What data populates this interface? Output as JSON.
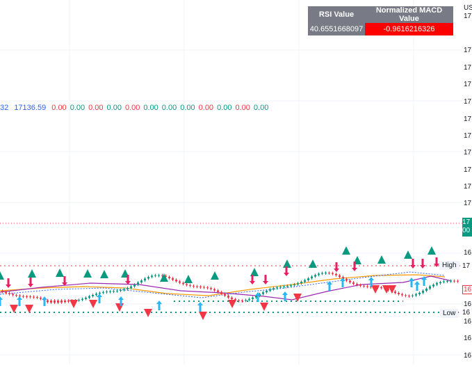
{
  "axis": {
    "currency": "US",
    "ticks": [
      "17",
      "17",
      "17",
      "17",
      "17",
      "17",
      "17",
      "17",
      "17",
      "17",
      "17",
      "16",
      "16",
      "16",
      "16",
      "16"
    ]
  },
  "price_badge": {
    "line1": "17",
    "line2": "00"
  },
  "indicator_row": {
    "first": "32",
    "second": "17136.59",
    "values": [
      "0.00",
      "0.00",
      "0.00",
      "0.00",
      "0.00",
      "0.00",
      "0.00",
      "0.00",
      "0.00",
      "0.00",
      "0.00",
      "0.00"
    ],
    "colors": [
      "red",
      "green",
      "red",
      "green",
      "red",
      "green",
      "green",
      "green",
      "red",
      "green",
      "red",
      "green"
    ]
  },
  "info_table": {
    "headers": [
      "RSI Value",
      "Normalized MACD Value"
    ],
    "rsi": "40.6551668097",
    "macd": "-0.9616216326"
  },
  "labels": {
    "high": "High",
    "low": "Low",
    "high_price": "17",
    "low_price": "16",
    "mid_price": "16"
  },
  "colors": {
    "up": "#089981",
    "down": "#f23645",
    "signal_down": "#f23645",
    "signal_up_arrow": "#29b6f6",
    "signal_pink_arrow": "#e91e63",
    "triangle_up": "#089981",
    "ma_orange": "#ff9800",
    "ma_purple": "#9c27b0"
  }
}
